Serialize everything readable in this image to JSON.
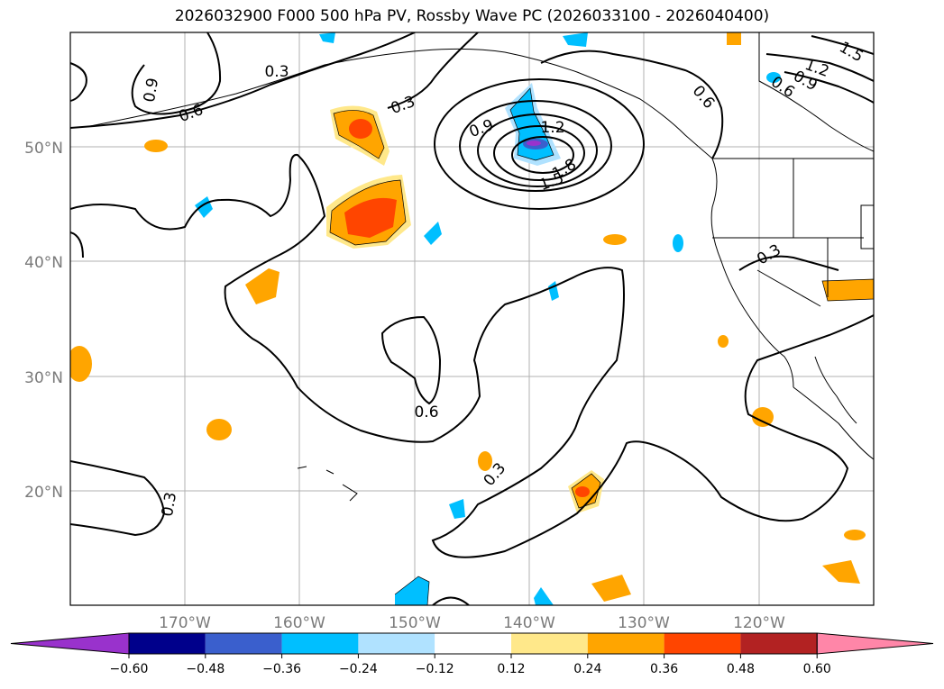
{
  "title": "2026032900 F000 500 hPa PV, Rossby Wave PC (2026033100 - 2026040400)",
  "lat_labels": [
    "50°N",
    "40°N",
    "30°N",
    "20°N"
  ],
  "lon_labels": [
    "170°W",
    "160°W",
    "150°W",
    "140°W",
    "130°W",
    "120°W"
  ],
  "contour_labels": [
    "0.3",
    "0.9",
    "0.6",
    "0.3",
    "0.9",
    "1.2",
    "1.5",
    "1.8",
    "0.6",
    "0.9",
    "1.2",
    "0.6",
    "1.5",
    "0.3",
    "0.6",
    "0.3",
    "0.3"
  ],
  "colorbar": {
    "ticks": [
      "−0.60",
      "−0.48",
      "−0.36",
      "−0.24",
      "−0.12",
      "0.12",
      "0.24",
      "0.36",
      "0.48",
      "0.60"
    ],
    "colors": [
      "#9932cc",
      "#00008b",
      "#3a5fcd",
      "#00bfff",
      "#b0e2ff",
      "#ffffff",
      "#ffe88a",
      "#ffa500",
      "#ff4500",
      "#b22222",
      "#ff86a8"
    ]
  },
  "map_extent": {
    "lon_min": -180,
    "lon_max": -110,
    "lat_min": 10,
    "lat_max": 60
  }
}
